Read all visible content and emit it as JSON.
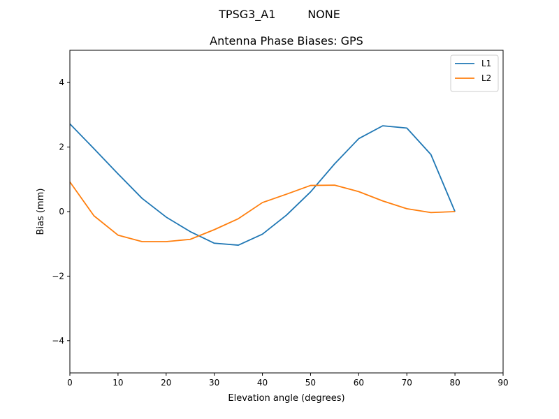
{
  "figure": {
    "suptitle": "TPSG3_A1         NONE"
  },
  "chart_data": {
    "type": "line",
    "title": "Antenna Phase Biases: GPS",
    "xlabel": "Elevation angle (degrees)",
    "ylabel": "Bias (mm)",
    "xlim": [
      0,
      90
    ],
    "ylim": [
      -5,
      5
    ],
    "xticks": [
      0,
      10,
      20,
      30,
      40,
      50,
      60,
      70,
      80,
      90
    ],
    "yticks": [
      -4,
      -2,
      0,
      2,
      4
    ],
    "xtick_labels": [
      "0",
      "10",
      "20",
      "30",
      "40",
      "50",
      "60",
      "70",
      "80",
      "90"
    ],
    "ytick_labels": [
      "−4",
      "−2",
      "0",
      "2",
      "4"
    ],
    "grid": false,
    "legend_position": "top-right",
    "x": [
      0,
      5,
      10,
      15,
      20,
      25,
      30,
      35,
      40,
      45,
      50,
      55,
      60,
      65,
      70,
      75,
      80
    ],
    "series": [
      {
        "name": "L1",
        "color": "#1f77b4",
        "values": [
          2.72,
          1.95,
          1.17,
          0.41,
          -0.17,
          -0.62,
          -0.98,
          -1.04,
          -0.7,
          -0.11,
          0.61,
          1.48,
          2.26,
          2.66,
          2.59,
          1.77,
          0.0
        ]
      },
      {
        "name": "L2",
        "color": "#ff7f0e",
        "values": [
          0.92,
          -0.13,
          -0.73,
          -0.93,
          -0.93,
          -0.86,
          -0.56,
          -0.22,
          0.28,
          0.54,
          0.81,
          0.82,
          0.62,
          0.33,
          0.09,
          -0.03,
          0.0
        ]
      }
    ]
  }
}
